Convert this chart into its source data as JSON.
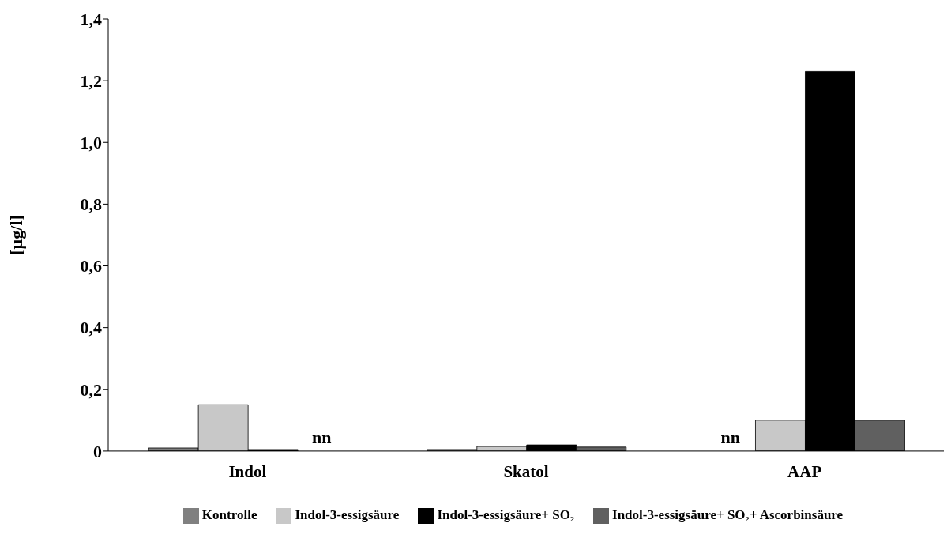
{
  "chart_data": {
    "type": "bar",
    "ylabel": "[µg/l]",
    "categories": [
      "Indol",
      "Skatol",
      "AAP"
    ],
    "series": [
      {
        "name": "Kontrolle",
        "color": "#808080",
        "values": [
          0.01,
          0.005,
          null
        ]
      },
      {
        "name": "Indol-3-essigsäure",
        "color": "#c8c8c8",
        "values": [
          0.15,
          0.015,
          0.1
        ]
      },
      {
        "name": "Indol-3-essigsäure+ SO₂",
        "color": "#000000",
        "values": [
          0.005,
          0.02,
          1.23
        ]
      },
      {
        "name": "Indol-3-essigsäure+ SO₂+ Ascorbinsäure",
        "color": "#606060",
        "values": [
          null,
          0.013,
          0.1
        ]
      }
    ],
    "ylim": [
      0,
      1.4
    ],
    "yticks": [
      0,
      {
        "value": 0.2,
        "label": "0,2"
      },
      {
        "value": 0.4,
        "label": "0,4"
      },
      {
        "value": 0.6,
        "label": "0,6"
      },
      {
        "value": 0.8,
        "label": "0,8"
      },
      {
        "value": 1.0,
        "label": "1,0"
      },
      {
        "value": 1.2,
        "label": "1,2"
      },
      {
        "value": 1.4,
        "label": "1,4"
      }
    ],
    "annotations": [
      "nn",
      "nn"
    ],
    "grid": false,
    "legend": "bottom"
  }
}
